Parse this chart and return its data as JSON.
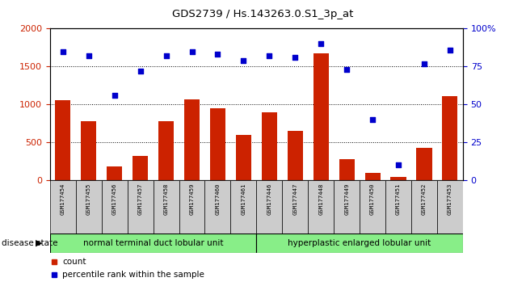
{
  "title": "GDS2739 / Hs.143263.0.S1_3p_at",
  "categories": [
    "GSM177454",
    "GSM177455",
    "GSM177456",
    "GSM177457",
    "GSM177458",
    "GSM177459",
    "GSM177460",
    "GSM177461",
    "GSM177446",
    "GSM177447",
    "GSM177448",
    "GSM177449",
    "GSM177450",
    "GSM177451",
    "GSM177452",
    "GSM177453"
  ],
  "counts": [
    1060,
    775,
    185,
    320,
    775,
    1065,
    950,
    600,
    900,
    650,
    1670,
    280,
    95,
    40,
    425,
    1110
  ],
  "percentiles": [
    85,
    82,
    56,
    72,
    82,
    85,
    83,
    79,
    82,
    81,
    90,
    73,
    40,
    10,
    77,
    86
  ],
  "group1_label": "normal terminal duct lobular unit",
  "group2_label": "hyperplastic enlarged lobular unit",
  "group1_count": 8,
  "group2_count": 8,
  "bar_color": "#cc2200",
  "dot_color": "#0000cc",
  "ylim_left": [
    0,
    2000
  ],
  "ylim_right": [
    0,
    100
  ],
  "yticks_left": [
    0,
    500,
    1000,
    1500,
    2000
  ],
  "yticks_right": [
    0,
    25,
    50,
    75,
    100
  ],
  "disease_state_label": "disease state",
  "legend_count_label": "count",
  "legend_percentile_label": "percentile rank within the sample",
  "bg_color": "#ffffff",
  "plot_bg": "#ffffff",
  "group_bg": "#88ee88",
  "tick_bg": "#cccccc"
}
